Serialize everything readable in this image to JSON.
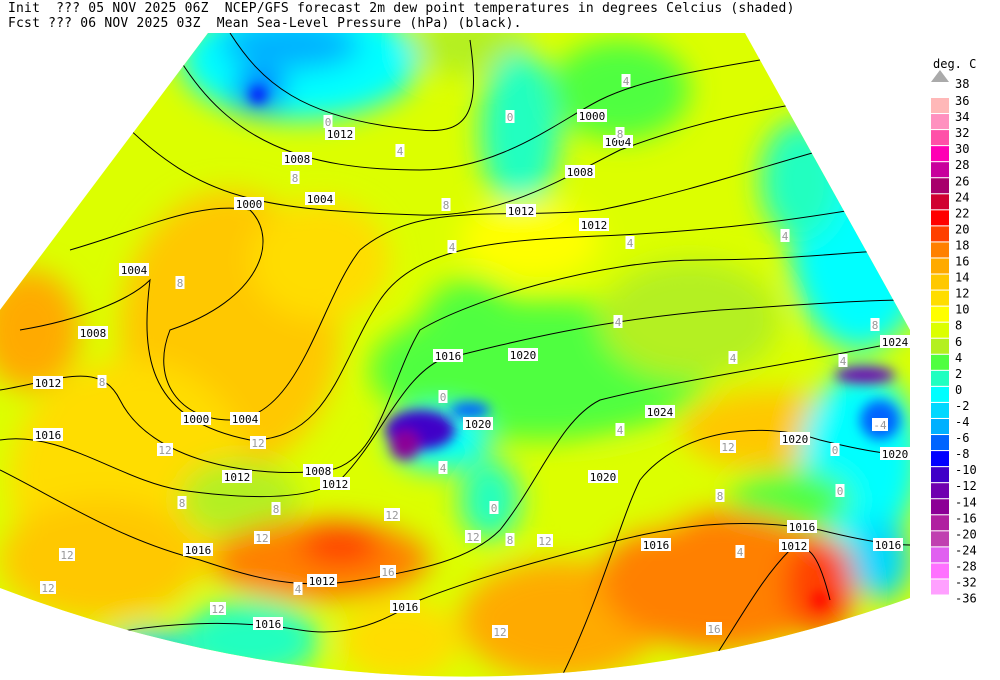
{
  "header": {
    "line1": "Init  ??? 05 NOV 2025 06Z  NCEP/GFS forecast 2m dew point temperatures in degrees Celcius (shaded)",
    "line2": "Fcst ??? 06 NOV 2025 03Z  Mean Sea-Level Pressure (hPa) (black)."
  },
  "colorbar": {
    "unit": "deg. C",
    "top_label": "38",
    "labels": [
      "36",
      "34",
      "32",
      "30",
      "28",
      "26",
      "24",
      "22",
      "20",
      "18",
      "16",
      "14",
      "12",
      "10",
      "8",
      "6",
      "4",
      "2",
      "0",
      "-2",
      "-4",
      "-6",
      "-8",
      "-10",
      "-12",
      "-14",
      "-16",
      "-20",
      "-24",
      "-28",
      "-32",
      "-36"
    ],
    "colors": [
      "#ffb8b8",
      "#ff90bf",
      "#ff50a8",
      "#ff00b4",
      "#c8009c",
      "#a8006c",
      "#d00030",
      "#ff0000",
      "#ff4000",
      "#ff8000",
      "#ffaa00",
      "#ffc800",
      "#ffdd00",
      "#ffff00",
      "#dcff00",
      "#b4f020",
      "#50ff40",
      "#20ffc0",
      "#00ffff",
      "#00d8ff",
      "#00b0ff",
      "#0064ff",
      "#0000ff",
      "#4000c8",
      "#7000b0",
      "#8c0096",
      "#b020a0",
      "#c040b0",
      "#e060f0",
      "#ff70ff",
      "#ffa0ff"
    ]
  },
  "isobar_labels": [
    "1012",
    "1008",
    "1004",
    "1000",
    "1004",
    "1008",
    "1012",
    "1016",
    "1000",
    "1004",
    "1012",
    "1008",
    "1012",
    "1016",
    "1012",
    "1016",
    "1016",
    "1000",
    "1004",
    "1008",
    "1012",
    "1012",
    "1016",
    "1020",
    "1024",
    "1024",
    "1020",
    "1020",
    "1020",
    "1020",
    "1016",
    "1012",
    "1016",
    "1016"
  ],
  "dewpoint_labels": [
    "0",
    "4",
    "8",
    "0",
    "4",
    "8",
    "8",
    "8",
    "12",
    "12",
    "8",
    "8",
    "12",
    "12",
    "12",
    "12",
    "4",
    "16",
    "12",
    "12",
    "8",
    "12",
    "0",
    "4",
    "0",
    "12",
    "16",
    "12",
    "4",
    "4",
    "4",
    "4",
    "8",
    "4",
    "-4",
    "0",
    "0",
    "4",
    "8",
    "4",
    "8",
    "4"
  ]
}
